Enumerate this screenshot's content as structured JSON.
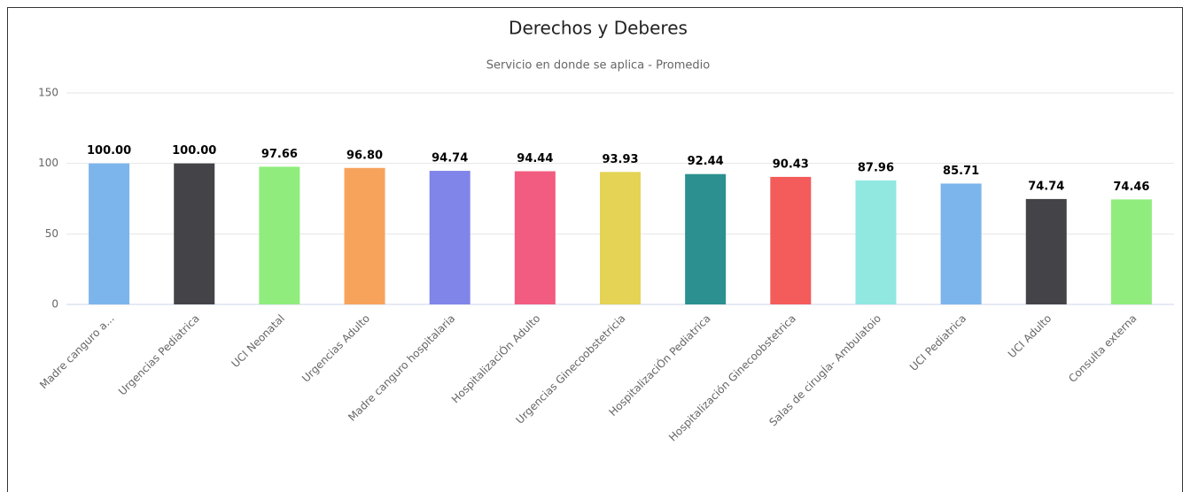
{
  "chart_data": {
    "type": "bar",
    "title": "Derechos y Deberes",
    "subtitle": "Servicio en donde se aplica - Promedio",
    "categories": [
      "Madre canguro a...",
      "Urgencias Pediatrica",
      "UCI Neonatal",
      "Urgencias Adulto",
      "Madre canguro hospitalaria",
      "HospitalizaciÓn Adulto",
      "Urgencias Ginecoobstetricia",
      "HospitalizaciÓn Pediatrica",
      "Hospitalización Ginecoobstetrica",
      "Salas de cirugÍa- Ambulatoio",
      "UCI Pediatrica",
      "UCI Adulto",
      "Consulta externa"
    ],
    "values": [
      100,
      100,
      97.66,
      96.8,
      94.74,
      94.44,
      93.93,
      92.44,
      90.43,
      87.96,
      85.71,
      74.74,
      74.46
    ],
    "value_labels": [
      "100.00",
      "100.00",
      "97.66",
      "96.80",
      "94.74",
      "94.44",
      "93.93",
      "92.44",
      "90.43",
      "87.96",
      "85.71",
      "74.74",
      "74.46"
    ],
    "colors": [
      "#7cb5ec",
      "#434348",
      "#90ed7d",
      "#f7a35c",
      "#8085e9",
      "#f15c80",
      "#e4d354",
      "#2b908f",
      "#f45b5b",
      "#91e8e1",
      "#7cb5ec",
      "#434348",
      "#90ed7d"
    ],
    "ylim": [
      0,
      150
    ],
    "yticks": [
      0,
      50,
      100,
      150
    ],
    "grid": true
  }
}
